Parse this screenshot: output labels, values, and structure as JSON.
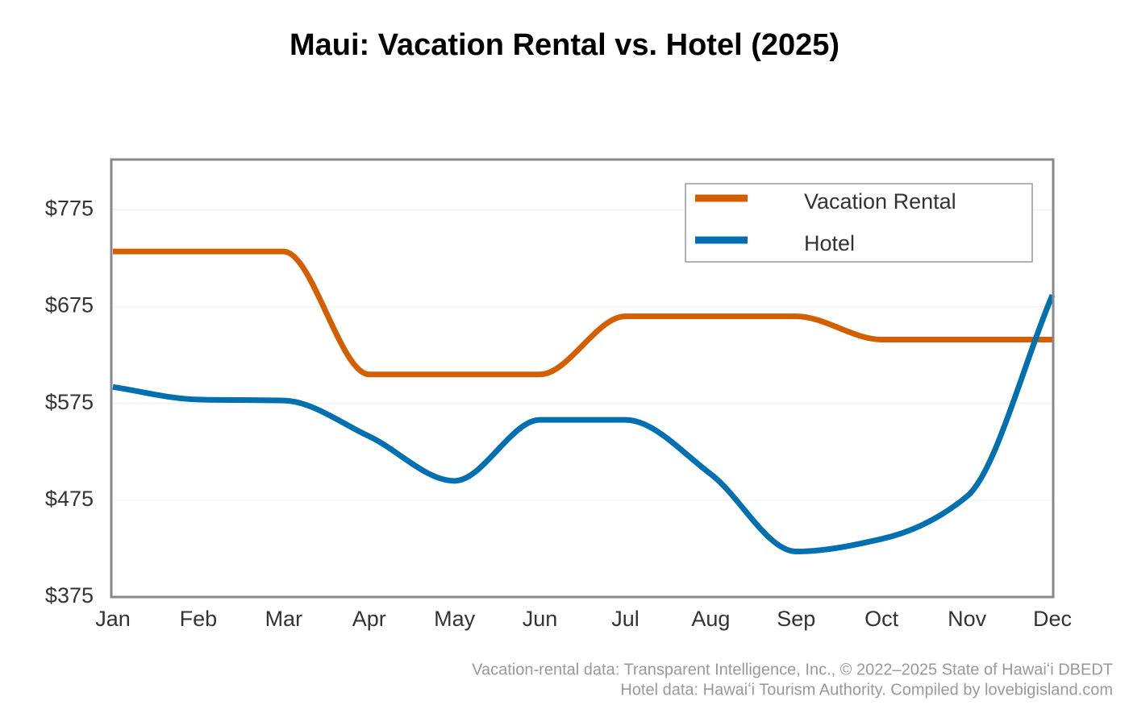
{
  "chart_data": {
    "type": "line",
    "title": "Maui: Vacation Rental vs. Hotel (2025)",
    "categories": [
      "Jan",
      "Feb",
      "Mar",
      "Apr",
      "May",
      "Jun",
      "Jul",
      "Aug",
      "Sep",
      "Oct",
      "Nov",
      "Dec"
    ],
    "series": [
      {
        "name": "Vacation Rental",
        "color": "#d45f00",
        "values": [
          732,
          732,
          732,
          605,
          605,
          605,
          665,
          665,
          665,
          641,
          641,
          641
        ]
      },
      {
        "name": "Hotel",
        "color": "#0070b0",
        "values": [
          592,
          579,
          578,
          541,
          495,
          558,
          558,
          502,
          422,
          435,
          479,
          687
        ]
      }
    ],
    "ylim": [
      375,
      827
    ],
    "yticks": [
      {
        "value": 375,
        "label": "$375"
      },
      {
        "value": 475,
        "label": "$475"
      },
      {
        "value": 575,
        "label": "$575"
      },
      {
        "value": 675,
        "label": "$675"
      },
      {
        "value": 775,
        "label": "$775"
      }
    ],
    "grid": true,
    "legend": "upper right",
    "source": [
      "Vacation-rental data: Transparent Intelligence, Inc., © 2022–2025 State of Hawaiʻi DBEDT",
      "Hotel data: Hawaiʻi Tourism Authority. Compiled by lovebigisland.com"
    ]
  }
}
